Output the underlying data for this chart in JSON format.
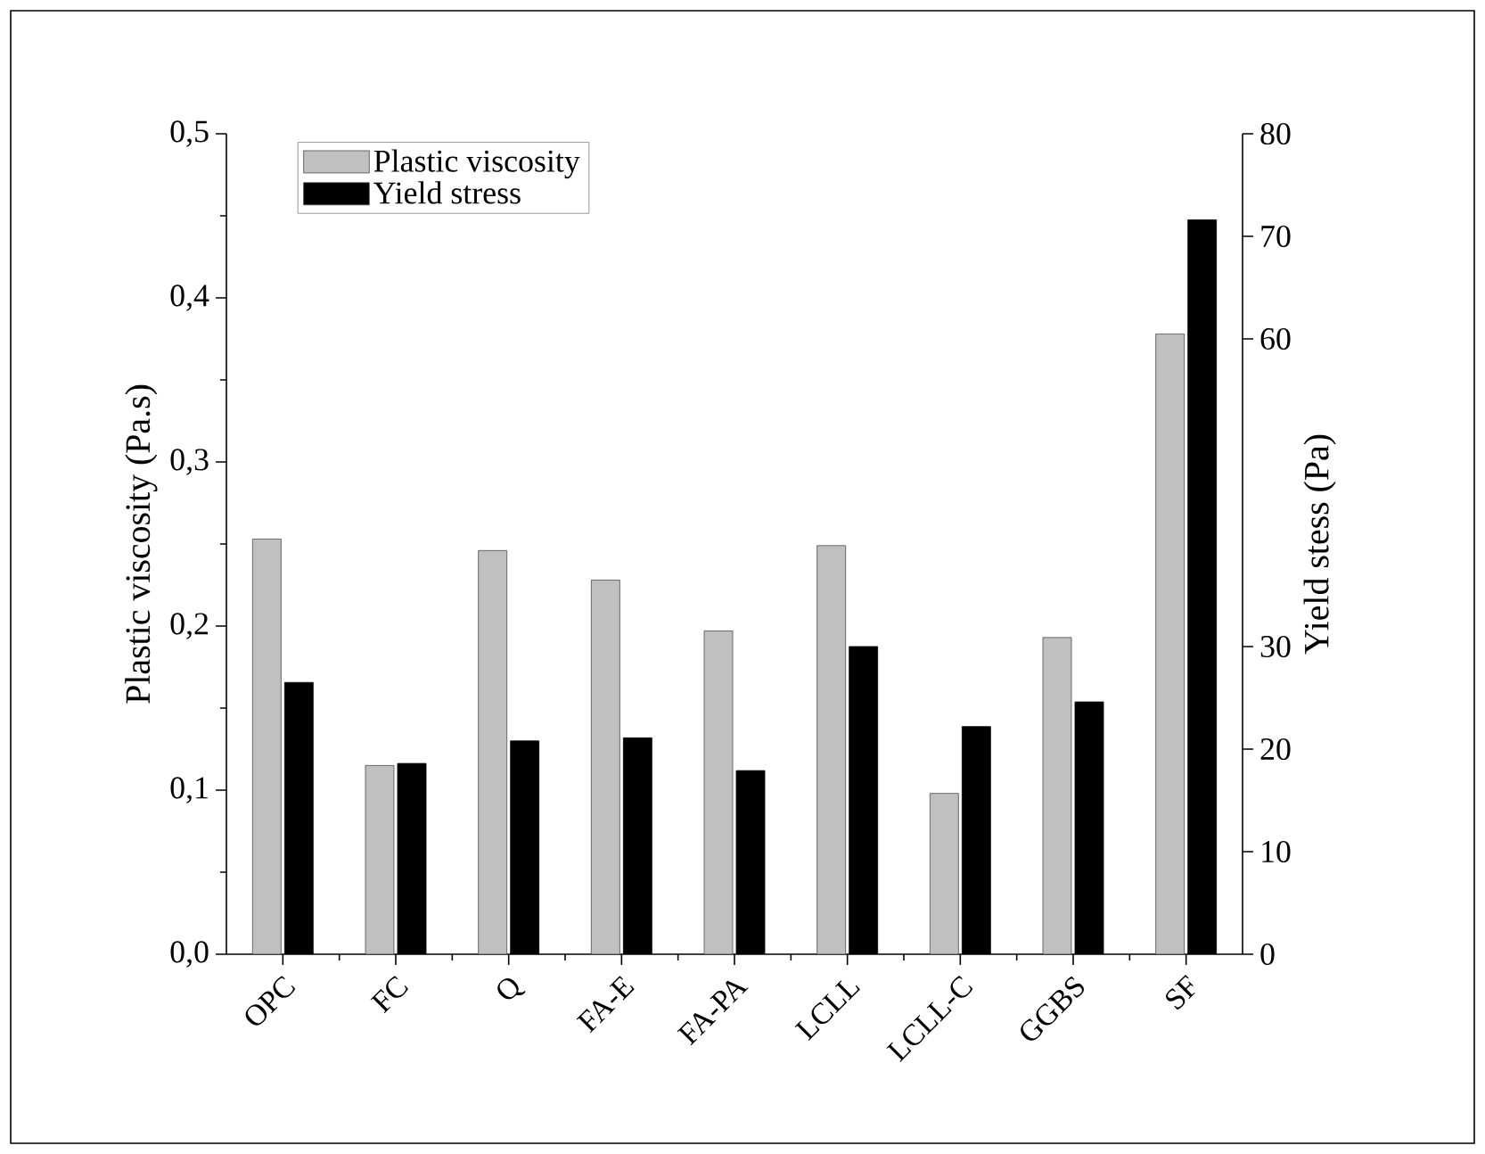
{
  "chart_data": {
    "type": "bar",
    "categories": [
      "OPC",
      "FC",
      "Q",
      "FA-E",
      "FA-PA",
      "LCLL",
      "LCLL-C",
      "GGBS",
      "SF"
    ],
    "series": [
      {
        "name": "Plastic viscosity",
        "color": "#c0c0c0",
        "values": [
          0.253,
          0.115,
          0.246,
          0.228,
          0.197,
          0.249,
          0.098,
          0.193,
          0.378
        ]
      },
      {
        "name": "Yield stress",
        "color": "#000000",
        "axis": "y2",
        "values": [
          26.5,
          18.6,
          20.8,
          21.1,
          17.9,
          30.0,
          22.2,
          24.6,
          71.6
        ]
      }
    ],
    "ylabel": "Plastic viscosity (Pa.s)",
    "y2label": "Yield stess (Pa)",
    "ylim": [
      0,
      0.5
    ],
    "yticks": [
      {
        "value": 0,
        "label": "0,0"
      },
      {
        "value": 0.1,
        "label": "0,1"
      },
      {
        "value": 0.2,
        "label": "0,2"
      },
      {
        "value": 0.3,
        "label": "0,3"
      },
      {
        "value": 0.4,
        "label": "0,4"
      },
      {
        "value": 0.5,
        "label": "0,5"
      }
    ],
    "y2lim": [
      0,
      80
    ],
    "y2ticks": [
      0,
      10,
      20,
      30,
      60,
      70,
      80
    ],
    "legend": "top left"
  }
}
